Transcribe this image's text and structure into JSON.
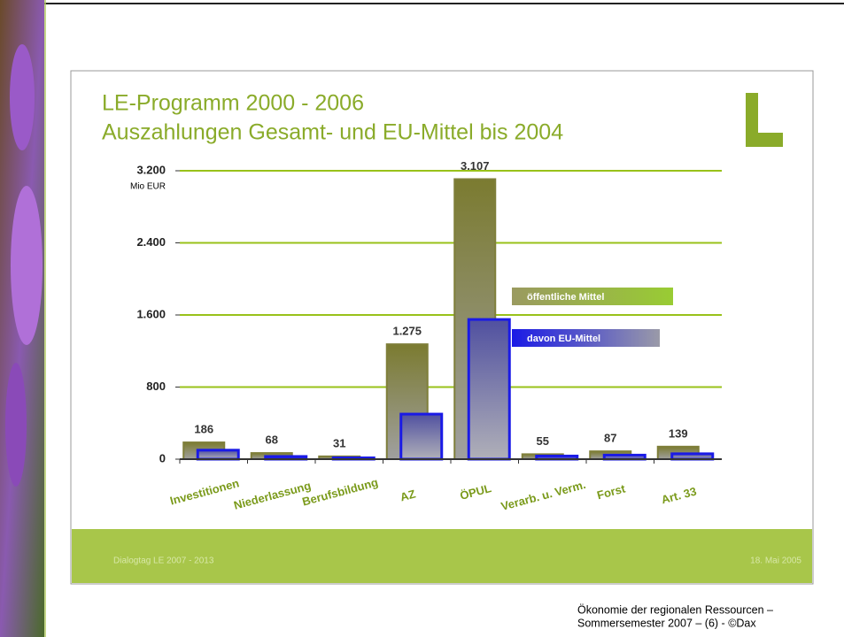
{
  "chart_data": {
    "type": "bar",
    "title": "LE-Programm 2000 - 2006",
    "subtitle": "Auszahlungen Gesamt- und EU-Mittel bis 2004",
    "y_label": "Mio EUR",
    "categories": [
      "Investitionen",
      "Niederlassung",
      "Berufsbildung",
      "AZ",
      "ÖPUL",
      "Verarb. u. Verm.",
      "Forst",
      "Art. 33"
    ],
    "series": [
      {
        "name": "öffentliche Mittel",
        "color": "#7f7f3a",
        "values": [
          186,
          68,
          31,
          1275,
          3107,
          55,
          87,
          139
        ],
        "value_labels": [
          "186",
          "68",
          "31",
          "1.275",
          "3.107",
          "55",
          "87",
          "139"
        ]
      },
      {
        "name": "davon EU-Mittel",
        "color": "#1a1ae6",
        "values": [
          100,
          30,
          15,
          500,
          1550,
          35,
          45,
          60
        ]
      }
    ],
    "ylim": [
      0,
      3200
    ],
    "yticks": [
      0,
      800,
      {
        "value": 1600,
        "label": "1.600"
      },
      {
        "value": 2400,
        "label": "2.400"
      },
      {
        "value": 3200,
        "label": "3.200"
      }
    ],
    "grid": true
  },
  "slide": {
    "footer_left": "Dialogtag LE 2007 - 2013",
    "footer_right": "18. Mai 2005"
  },
  "caption": {
    "line1": "Ökonomie der regionalen Ressourcen –",
    "line2": "Sommersemester 2007 – (6) - ©Dax"
  }
}
